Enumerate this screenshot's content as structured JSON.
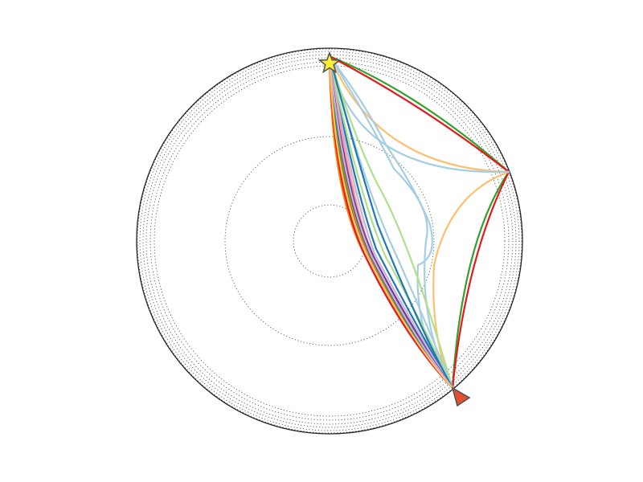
{
  "figure": {
    "type": "ray-path-plot",
    "outline_color": "#222222",
    "dotted_color": "#555555",
    "source_marker": {
      "shape": "star",
      "name": "source-star-icon",
      "fill": "#ffee33",
      "stroke": "#555555"
    },
    "receiver_marker": {
      "shape": "triangle",
      "name": "receiver-triangle-icon",
      "fill": "#e05030",
      "stroke": "#555555"
    },
    "discontinuity_count": 8,
    "ray_groups": [
      {
        "name": "direct-rays",
        "count": 16
      },
      {
        "name": "reflected-rays",
        "count": 4
      },
      {
        "name": "deep-rays",
        "count": 3
      }
    ],
    "ray_colors": [
      "#a6cee3",
      "#1f78b4",
      "#b2df8a",
      "#33a02c",
      "#fb9a99",
      "#e31a1c",
      "#fdbf6f",
      "#ff7f00",
      "#cab2d6",
      "#6a3d9a",
      "#b15928",
      "#3c4fa0"
    ]
  }
}
